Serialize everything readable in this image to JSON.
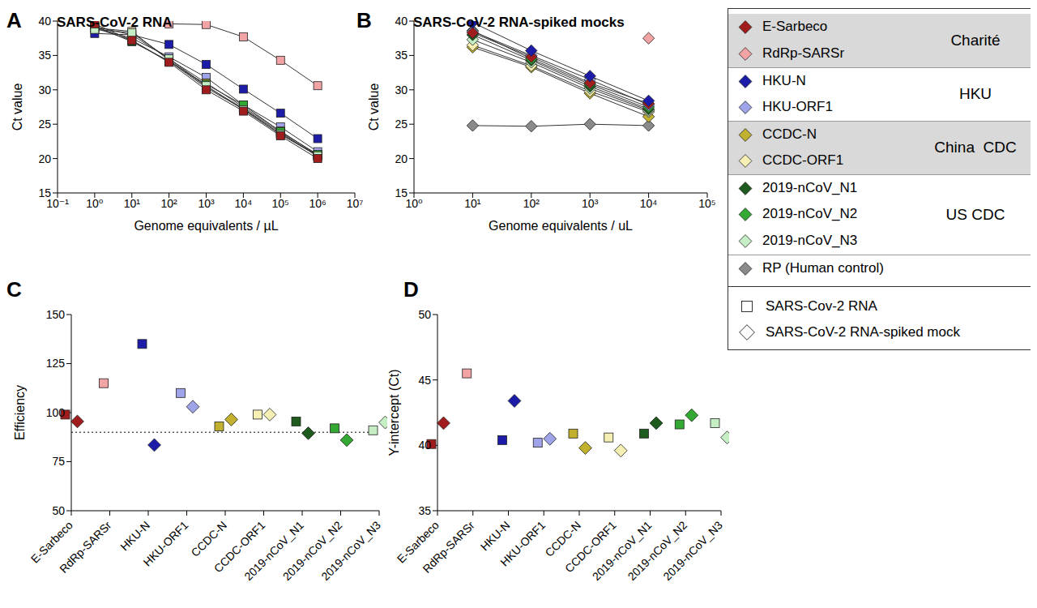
{
  "chart_data": [
    {
      "annotations": [
        "A"
      ],
      "title": "SARS-CoV-2 RNA",
      "type": "line",
      "marker": "square",
      "log": "x",
      "grid": false,
      "xlabel": "Genome equivalents / µL",
      "ylabel": "Ct value",
      "x": [
        1,
        10,
        100,
        1000,
        10000,
        100000,
        1000000
      ],
      "xlim": [
        0.1,
        10000000
      ],
      "xticks": [
        {
          "value": 0.1,
          "label": "10⁻¹"
        },
        {
          "value": 1,
          "label": "10⁰"
        },
        {
          "value": 10,
          "label": "10¹"
        },
        {
          "value": 100,
          "label": "10²"
        },
        {
          "value": 1000,
          "label": "10³"
        },
        {
          "value": 10000,
          "label": "10⁴"
        },
        {
          "value": 100000,
          "label": "10⁵"
        },
        {
          "value": 1000000,
          "label": "10⁶"
        },
        {
          "value": 10000000,
          "label": "10⁷"
        }
      ],
      "ylim": [
        15,
        40
      ],
      "yticks": [
        15,
        20,
        25,
        30,
        35,
        40
      ],
      "series": [
        {
          "name": "RdRp-SARSr",
          "color": "#f2a3a3",
          "values": [
            null,
            null,
            39.6,
            39.5,
            37.7,
            34.3,
            30.6
          ]
        },
        {
          "name": "HKU-N",
          "color": "#1c1ca8",
          "values": [
            38.2,
            38.0,
            36.6,
            33.7,
            30.1,
            26.6,
            22.9
          ]
        },
        {
          "name": "HKU-ORF1",
          "color": "#9fa3ea",
          "values": [
            39.0,
            37.5,
            34.8,
            31.8,
            27.8,
            24.6,
            21.0
          ]
        },
        {
          "name": "CCDC-N",
          "color": "#c2b12e",
          "values": [
            39.2,
            38.0,
            34.5,
            31.0,
            27.5,
            24.0,
            20.5
          ]
        },
        {
          "name": "CCDC-ORF1",
          "color": "#f6efb3",
          "values": [
            39.0,
            38.5,
            34.3,
            30.5,
            27.3,
            23.8,
            20.3
          ]
        },
        {
          "name": "2019-nCoV_N1",
          "color": "#1e5b1e",
          "values": [
            39.3,
            37.0,
            34.2,
            30.3,
            27.2,
            23.6,
            20.5
          ]
        },
        {
          "name": "2019-nCoV_N2",
          "color": "#33a933",
          "values": [
            39.0,
            37.2,
            34.1,
            30.8,
            27.8,
            23.9,
            20.6
          ]
        },
        {
          "name": "2019-nCoV_N3",
          "color": "#c5eec5",
          "values": [
            38.8,
            38.3,
            34.5,
            30.6,
            27.1,
            23.5,
            20.4
          ]
        },
        {
          "name": "E-Sarbeco",
          "color": "#a11d1d",
          "values": [
            39.6,
            37.2,
            34.0,
            30.0,
            26.9,
            23.3,
            20.0
          ]
        }
      ]
    },
    {
      "annotations": [
        "B"
      ],
      "title": "SARS-CoV-2 RNA-spiked mocks",
      "type": "line",
      "marker": "diamond",
      "log": "x",
      "grid": false,
      "xlabel": "Genome equivalents / uL",
      "ylabel": "Ct value",
      "x": [
        10,
        100,
        1000,
        10000
      ],
      "xlim": [
        1,
        100000
      ],
      "xticks": [
        {
          "value": 1,
          "label": "10⁰"
        },
        {
          "value": 10,
          "label": "10¹"
        },
        {
          "value": 100,
          "label": "10²"
        },
        {
          "value": 1000,
          "label": "10³"
        },
        {
          "value": 10000,
          "label": "10⁴"
        },
        {
          "value": 100000,
          "label": "10⁵"
        }
      ],
      "ylim": [
        15,
        40
      ],
      "yticks": [
        15,
        20,
        25,
        30,
        35,
        40
      ],
      "series": [
        {
          "name": "RP (Human control)",
          "color": "#8a8a8a",
          "values": [
            24.8,
            24.7,
            25.0,
            24.8
          ]
        },
        {
          "name": "RdRp-SARSr",
          "color": "#f2a3a3",
          "values": [
            null,
            null,
            null,
            37.5
          ]
        },
        {
          "name": "CCDC-N",
          "color": "#c2b12e",
          "values": [
            36.2,
            33.3,
            29.5,
            26.1
          ]
        },
        {
          "name": "CCDC-ORF1",
          "color": "#f6efb3",
          "values": [
            36.5,
            33.5,
            29.8,
            26.8
          ]
        },
        {
          "name": "2019-nCoV_N3",
          "color": "#c5eec5",
          "values": [
            37.3,
            34.0,
            30.2,
            27.0
          ]
        },
        {
          "name": "2019-nCoV_N1",
          "color": "#1e5b1e",
          "values": [
            38.0,
            34.3,
            30.5,
            27.2
          ]
        },
        {
          "name": "2019-nCoV_N2",
          "color": "#33a933",
          "values": [
            38.6,
            34.5,
            30.8,
            27.5
          ]
        },
        {
          "name": "HKU-ORF1",
          "color": "#9fa3ea",
          "values": [
            38.5,
            35.0,
            31.5,
            27.8
          ]
        },
        {
          "name": "E-Sarbeco",
          "color": "#a11d1d",
          "values": [
            38.3,
            34.8,
            31.0,
            28.0
          ]
        },
        {
          "name": "HKU-N",
          "color": "#1c1ca8",
          "values": [
            39.8,
            35.7,
            32.0,
            28.4
          ]
        }
      ]
    },
    {
      "annotations": [
        "C"
      ],
      "type": "scatter",
      "grid": false,
      "ylabel": "Efficiency",
      "categories": [
        "E-Sarbeco",
        "RdRp-SARSr",
        "HKU-N",
        "HKU-ORF1",
        "CCDC-N",
        "CCDC-ORF1",
        "2019-nCoV_N1",
        "2019-nCoV_N2",
        "2019-nCoV_N3"
      ],
      "ylim": [
        50,
        150
      ],
      "yticks": [
        50,
        75,
        100,
        125,
        150
      ],
      "reference_line": 90,
      "series": [
        {
          "name": "SARS-Cov-2 RNA",
          "marker": "square",
          "colors": [
            "#a11d1d",
            "#f2a3a3",
            "#1c1ca8",
            "#9fa3ea",
            "#c2b12e",
            "#f6efb3",
            "#1e5b1e",
            "#33a933",
            "#c5eec5"
          ],
          "values": [
            99,
            115,
            135,
            110,
            93,
            99,
            95.5,
            92,
            91
          ]
        },
        {
          "name": "SARS-CoV-2 RNA-spiked mock",
          "marker": "diamond",
          "colors": [
            "#a11d1d",
            "#f2a3a3",
            "#1c1ca8",
            "#9fa3ea",
            "#c2b12e",
            "#f6efb3",
            "#1e5b1e",
            "#33a933",
            "#c5eec5"
          ],
          "values": [
            95.5,
            null,
            83.5,
            103,
            96.5,
            99,
            89.5,
            86,
            95
          ]
        }
      ]
    },
    {
      "annotations": [
        "D"
      ],
      "type": "scatter",
      "grid": false,
      "ylabel": "Y-intercept (Ct)",
      "categories": [
        "E-Sarbeco",
        "RdRp-SARSr",
        "HKU-N",
        "HKU-ORF1",
        "CCDC-N",
        "CCDC-ORF1",
        "2019-nCoV_N1",
        "2019-nCoV_N2",
        "2019-nCoV_N3"
      ],
      "ylim": [
        35,
        50
      ],
      "yticks": [
        35,
        40,
        45,
        50
      ],
      "series": [
        {
          "name": "SARS-Cov-2 RNA",
          "marker": "square",
          "colors": [
            "#a11d1d",
            "#f2a3a3",
            "#1c1ca8",
            "#9fa3ea",
            "#c2b12e",
            "#f6efb3",
            "#1e5b1e",
            "#33a933",
            "#c5eec5"
          ],
          "values": [
            40.1,
            45.5,
            40.4,
            40.2,
            40.9,
            40.6,
            40.9,
            41.6,
            41.7
          ]
        },
        {
          "name": "SARS-CoV-2 RNA-spiked mock",
          "marker": "diamond",
          "colors": [
            "#a11d1d",
            "#f2a3a3",
            "#1c1ca8",
            "#9fa3ea",
            "#c2b12e",
            "#f6efb3",
            "#1e5b1e",
            "#33a933",
            "#c5eec5"
          ],
          "values": [
            41.7,
            null,
            43.4,
            40.5,
            39.8,
            39.6,
            41.7,
            42.3,
            40.6
          ]
        }
      ]
    }
  ],
  "key": {
    "marker": "diamond",
    "series": [
      {
        "name": "E-Sarbeco",
        "color": "#a11d1d"
      },
      {
        "name": "RdRp-SARSr",
        "color": "#f2a3a3"
      },
      {
        "name": "HKU-N",
        "color": "#1c1ca8"
      },
      {
        "name": "HKU-ORF1",
        "color": "#9fa3ea"
      },
      {
        "name": "CCDC-N",
        "color": "#c2b12e"
      },
      {
        "name": "CCDC-ORF1",
        "color": "#f6efb3"
      },
      {
        "name": "2019-nCoV_N1",
        "color": "#1e5b1e"
      },
      {
        "name": "2019-nCoV_N2",
        "color": "#33a933"
      },
      {
        "name": "2019-nCoV_N3",
        "color": "#c5eec5"
      },
      {
        "name": "RP (Human control)",
        "color": "#8a8a8a"
      }
    ],
    "groups": [
      {
        "label": "Charité",
        "members": [
          "E-Sarbeco",
          "RdRp-SARSr"
        ]
      },
      {
        "label": "HKU",
        "members": [
          "HKU-N",
          "HKU-ORF1"
        ]
      },
      {
        "label": "China  CDC",
        "members": [
          "CCDC-N",
          "CCDC-ORF1"
        ]
      },
      {
        "label": "US CDC",
        "members": [
          "2019-nCoV_N1",
          "2019-nCoV_N2",
          "2019-nCoV_N3"
        ]
      }
    ],
    "markers": [
      {
        "label": "SARS-Cov-2 RNA",
        "marker": "square"
      },
      {
        "label": "SARS-CoV-2 RNA-spiked mock",
        "marker": "diamond"
      }
    ]
  }
}
